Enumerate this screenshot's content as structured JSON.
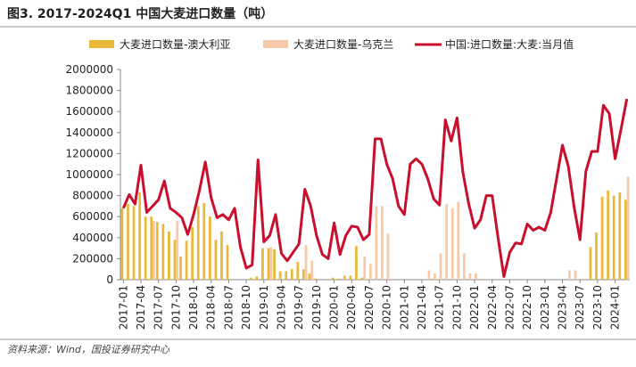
{
  "chart_data": {
    "type": "bar-line",
    "title": "图3. 2017-2024Q1 中国大麦进口数量（吨）",
    "source": "资料来源：Wind，国投证券研究中心",
    "categories": [
      "2017-01",
      null,
      null,
      "2017-04",
      null,
      null,
      "2017-07",
      null,
      null,
      "2017-10",
      null,
      null,
      "2018-01",
      null,
      null,
      "2018-04",
      null,
      null,
      "2018-07",
      null,
      null,
      "2018-10",
      null,
      null,
      "2019-01",
      null,
      null,
      "2019-04",
      null,
      null,
      "2019-07",
      null,
      null,
      "2019-10",
      null,
      null,
      "2020-01",
      null,
      null,
      "2020-04",
      null,
      null,
      "2020-07",
      null,
      null,
      "2020-10",
      null,
      null,
      "2021-01",
      null,
      null,
      "2021-04",
      null,
      null,
      "2021-07",
      null,
      null,
      "2021-10",
      null,
      null,
      "2022-01",
      null,
      null,
      "2022-04",
      null,
      null,
      "2022-07",
      null,
      null,
      "2022-10",
      null,
      null,
      "2023-01",
      null,
      null,
      "2023-04",
      null,
      null,
      "2023-07",
      null,
      null,
      "2023-10",
      null,
      null,
      "2024-01",
      null,
      null
    ],
    "series": [
      {
        "name": "大麦进口数量-澳大利亚",
        "kind": "bar",
        "color": "#e8b93a",
        "values": [
          680000,
          720000,
          700000,
          830000,
          600000,
          600000,
          550000,
          530000,
          460000,
          380000,
          220000,
          370000,
          500000,
          700000,
          730000,
          600000,
          380000,
          460000,
          330000,
          0,
          0,
          0,
          20000,
          30000,
          300000,
          300000,
          290000,
          80000,
          80000,
          100000,
          170000,
          100000,
          60000,
          10000,
          0,
          0,
          20000,
          10000,
          40000,
          40000,
          320000,
          20000,
          0,
          0,
          0,
          0,
          0,
          0,
          0,
          0,
          0,
          0,
          0,
          0,
          0,
          0,
          0,
          0,
          0,
          0,
          0,
          0,
          0,
          0,
          0,
          0,
          0,
          0,
          0,
          0,
          0,
          0,
          0,
          0,
          0,
          0,
          0,
          0,
          0,
          0,
          310000,
          450000,
          790000,
          850000,
          800000,
          830000,
          760000
        ]
      },
      {
        "name": "大麦进口数量-乌克兰",
        "kind": "bar",
        "color": "#f6c9a8",
        "values": [
          0,
          0,
          0,
          0,
          0,
          560000,
          0,
          0,
          0,
          560000,
          0,
          0,
          0,
          0,
          0,
          0,
          0,
          0,
          0,
          0,
          0,
          0,
          0,
          0,
          0,
          310000,
          0,
          0,
          0,
          0,
          0,
          330000,
          180000,
          0,
          0,
          0,
          0,
          0,
          0,
          0,
          0,
          220000,
          150000,
          700000,
          700000,
          440000,
          0,
          0,
          0,
          0,
          0,
          0,
          90000,
          60000,
          250000,
          720000,
          680000,
          740000,
          250000,
          60000,
          60000,
          0,
          0,
          0,
          0,
          0,
          0,
          0,
          0,
          0,
          0,
          0,
          0,
          0,
          0,
          0,
          90000,
          90000,
          0,
          0,
          0,
          0,
          0,
          0,
          0,
          0,
          980000
        ]
      },
      {
        "name": "中国:进口数量:大麦:当月值",
        "kind": "line",
        "color": "#c8102e",
        "values": [
          680000,
          810000,
          720000,
          1090000,
          640000,
          700000,
          760000,
          940000,
          680000,
          640000,
          590000,
          430000,
          620000,
          850000,
          1120000,
          780000,
          590000,
          620000,
          570000,
          680000,
          310000,
          110000,
          140000,
          1140000,
          360000,
          420000,
          620000,
          250000,
          180000,
          260000,
          340000,
          860000,
          700000,
          420000,
          240000,
          200000,
          540000,
          240000,
          420000,
          510000,
          500000,
          380000,
          430000,
          1340000,
          1340000,
          1100000,
          960000,
          700000,
          620000,
          1100000,
          1150000,
          1100000,
          960000,
          770000,
          710000,
          1520000,
          1320000,
          1540000,
          1020000,
          720000,
          490000,
          570000,
          800000,
          800000,
          400000,
          30000,
          260000,
          350000,
          340000,
          530000,
          470000,
          500000,
          470000,
          640000,
          960000,
          1280000,
          1080000,
          690000,
          380000,
          1030000,
          1220000,
          1220000,
          1660000,
          1580000,
          1150000,
          1430000,
          1720000
        ]
      }
    ],
    "ylim": [
      0,
      2000000
    ],
    "yticks": [
      0,
      200000,
      400000,
      600000,
      800000,
      1000000,
      1200000,
      1400000,
      1600000,
      1800000,
      2000000
    ]
  }
}
